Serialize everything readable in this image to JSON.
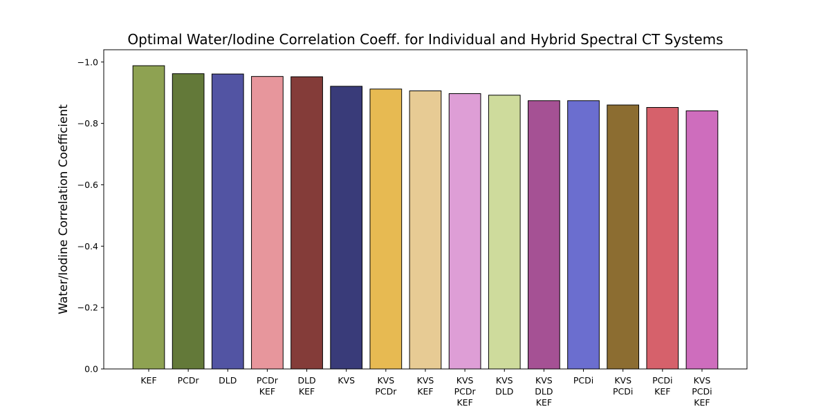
{
  "chart_data": {
    "type": "bar",
    "title": "Optimal Water/Iodine Correlation Coeff. for Individual and Hybrid Spectral CT Systems",
    "xlabel": "",
    "ylabel": "Water/Iodine Correlation Coefficient",
    "ylim": [
      0.0,
      -1.04
    ],
    "yticks": [
      0.0,
      -0.2,
      -0.4,
      -0.6,
      -0.8,
      -1.0
    ],
    "ytick_labels": [
      "0.0",
      "−0.2",
      "−0.4",
      "−0.6",
      "−0.8",
      "−1.0"
    ],
    "categories": [
      [
        "KEF"
      ],
      [
        "PCDr"
      ],
      [
        "DLD"
      ],
      [
        "PCDr",
        "KEF"
      ],
      [
        "DLD",
        "KEF"
      ],
      [
        "KVS"
      ],
      [
        "KVS",
        "PCDr"
      ],
      [
        "KVS",
        "KEF"
      ],
      [
        "KVS",
        "PCDr",
        "KEF"
      ],
      [
        "KVS",
        "DLD"
      ],
      [
        "KVS",
        "DLD",
        "KEF"
      ],
      [
        "PCDi"
      ],
      [
        "KVS",
        "PCDi"
      ],
      [
        "PCDi",
        "KEF"
      ],
      [
        "KVS",
        "PCDi",
        "KEF"
      ]
    ],
    "values": [
      -0.988,
      -0.962,
      -0.961,
      -0.953,
      -0.952,
      -0.921,
      -0.912,
      -0.906,
      -0.897,
      -0.892,
      -0.874,
      -0.874,
      -0.86,
      -0.852,
      -0.841
    ],
    "colors": [
      "#8ea252",
      "#637939",
      "#5254a3",
      "#e7969c",
      "#843c39",
      "#393b79",
      "#e7ba52",
      "#e7cb94",
      "#de9ed6",
      "#cedb9c",
      "#a55194",
      "#6b6ecf",
      "#8c6d31",
      "#d6616b",
      "#ce6dbd"
    ],
    "grid": false,
    "legend": "none"
  }
}
